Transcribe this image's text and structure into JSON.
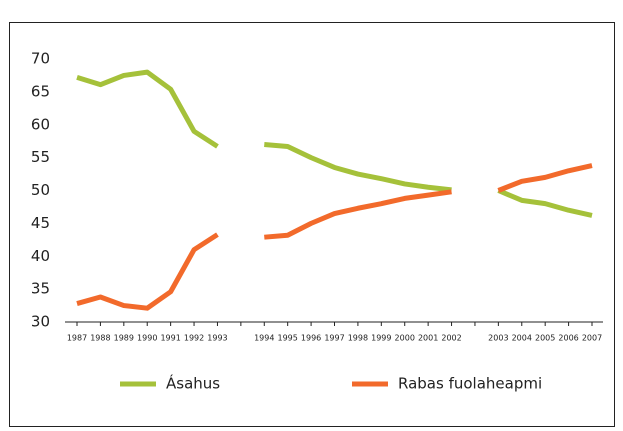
{
  "chart_data": {
    "type": "line",
    "categories": [
      "1987",
      "1988",
      "1989",
      "1990",
      "1991",
      "1992",
      "1993",
      null,
      "1994",
      "1995",
      "1996",
      "1997",
      "1998",
      "1999",
      "2000",
      "2001",
      "2002",
      null,
      "2003",
      "2004",
      "2005",
      "2006",
      "2007"
    ],
    "series": [
      {
        "name": "Ásahus",
        "color": "#a5c13a",
        "values": [
          67.2,
          66.1,
          67.5,
          68.0,
          65.4,
          59.0,
          56.7,
          null,
          57.0,
          56.7,
          55.0,
          53.5,
          52.5,
          51.8,
          51.0,
          50.5,
          50.1,
          null,
          50.0,
          48.5,
          48.0,
          47.0,
          46.2
        ]
      },
      {
        "name": "Rabas fuolaheapmi",
        "color": "#f26a2b",
        "values": [
          32.8,
          33.8,
          32.5,
          32.1,
          34.6,
          41.0,
          43.3,
          null,
          42.9,
          43.2,
          45.0,
          46.5,
          47.3,
          48.0,
          48.8,
          49.3,
          49.8,
          null,
          50.0,
          51.4,
          52.0,
          53.0,
          53.8
        ]
      }
    ],
    "ylim": [
      30,
      70
    ],
    "yticks": [
      30,
      35,
      40,
      45,
      50,
      55,
      60,
      65,
      70
    ]
  }
}
